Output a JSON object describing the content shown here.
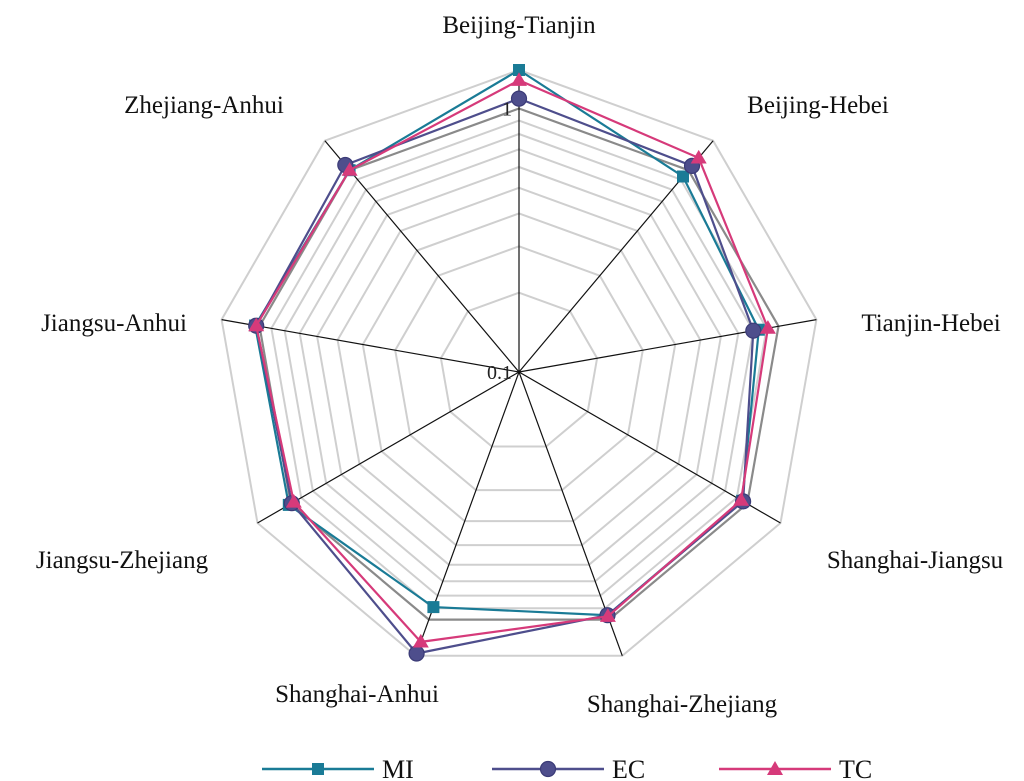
{
  "chart_data": {
    "type": "radar",
    "scale": "log",
    "rlim": [
      0.1,
      1.4
    ],
    "ticks": [
      {
        "value": 1,
        "label": "1"
      },
      {
        "value": 0.1,
        "label": "0.1"
      }
    ],
    "categories": [
      "Beijing-Tianjin",
      "Beijing-Hebei",
      "Tianjin-Hebei",
      "Shanghai-Jiangsu",
      "Shanghai-Zhejiang",
      "Shanghai-Anhui",
      "Jiangsu-Zhejiang",
      "Jiangsu-Anhui",
      "Zhejiang-Anhui"
    ],
    "series": [
      {
        "name": "MI",
        "color": "#1a7b96",
        "marker": "square",
        "values": [
          1.4,
          0.93,
          0.84,
          0.95,
          0.96,
          0.89,
          1.02,
          1.04,
          1.0
        ]
      },
      {
        "name": "EC",
        "color": "#4e4e8c",
        "marker": "circle",
        "values": [
          1.09,
          1.05,
          0.8,
          0.96,
          0.96,
          1.37,
          0.99,
          1.03,
          1.06
        ]
      },
      {
        "name": "TC",
        "color": "#d63a7a",
        "marker": "triangle",
        "values": [
          1.28,
          1.15,
          0.91,
          0.94,
          0.97,
          1.23,
          0.97,
          1.03,
          1.0
        ]
      }
    ],
    "grid": true,
    "legend": "bottom"
  }
}
